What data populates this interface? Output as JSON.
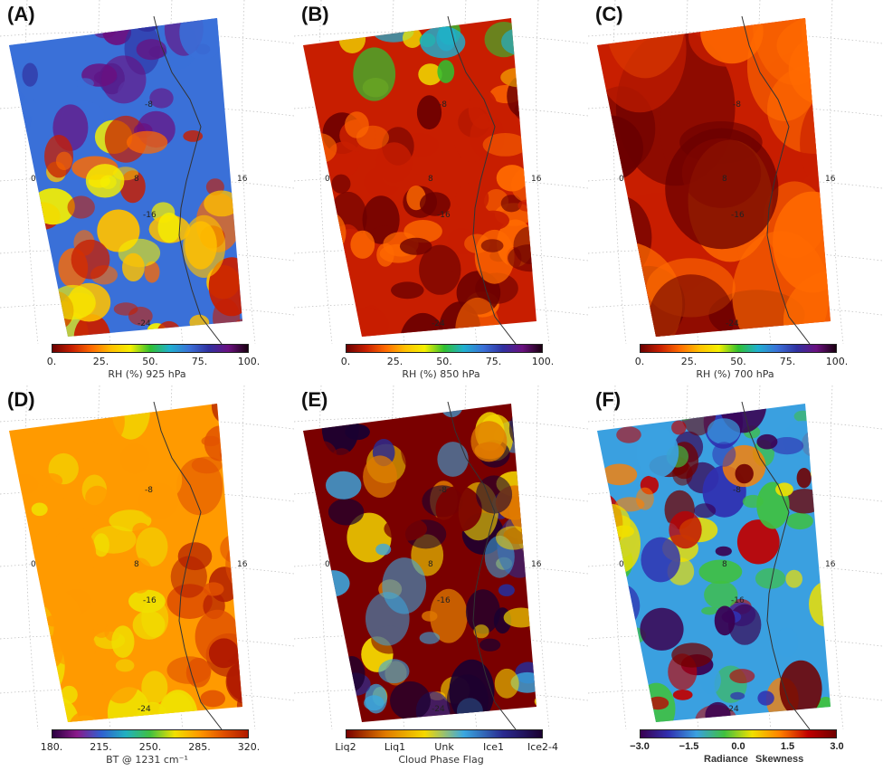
{
  "panels": [
    {
      "letter": "(A)",
      "scheme": "rh_low",
      "colorbar": {
        "ticks": [
          "0.",
          "25.",
          "50.",
          "75.",
          "100."
        ],
        "label": "RH (%) 925 hPa"
      }
    },
    {
      "letter": "(B)",
      "scheme": "rh_mid",
      "colorbar": {
        "ticks": [
          "0.",
          "25.",
          "50.",
          "75.",
          "100."
        ],
        "label": "RH (%) 850 hPa"
      }
    },
    {
      "letter": "(C)",
      "scheme": "rh_dry",
      "colorbar": {
        "ticks": [
          "0.",
          "25.",
          "50.",
          "75.",
          "100."
        ],
        "label": "RH (%) 700 hPa"
      }
    },
    {
      "letter": "(D)",
      "scheme": "bt",
      "colorbar": {
        "ticks": [
          "180.",
          "215.",
          "250.",
          "285.",
          "320."
        ],
        "label": "BT @ 1231 cm⁻¹"
      }
    },
    {
      "letter": "(E)",
      "scheme": "phase",
      "colorbar": {
        "ticks": [
          "Liq2",
          "Liq1",
          "Unk",
          "Ice1",
          "Ice2-4"
        ],
        "label": "Cloud Phase Flag"
      }
    },
    {
      "letter": "(F)",
      "scheme": "skew",
      "colorbar": {
        "ticks": [
          "−3.0",
          "−1.5",
          "0.0",
          "1.5",
          "3.0"
        ],
        "label_left": "Radiance",
        "label_right": "Skewness"
      }
    }
  ],
  "map_labels": {
    "lat_minus8": "-8",
    "lat_minus16": "-16",
    "lat_minus24": "-24",
    "lon_0": "0",
    "lon_8": "8",
    "lon_16": "16"
  },
  "colors": {
    "rainbow": [
      "#6b0000",
      "#c81e00",
      "#ff6a00",
      "#ffc000",
      "#f5f000",
      "#30c030",
      "#1fb0d0",
      "#3a70d8",
      "#3030a0",
      "#6a1080",
      "#1a0010"
    ],
    "bt": [
      "#2a0040",
      "#8a1a8a",
      "#3060d0",
      "#20b0c0",
      "#40c040",
      "#f0e000",
      "#ff9a00",
      "#e05000",
      "#b01a00"
    ],
    "phase": [
      "#7a0000",
      "#e07a00",
      "#f5d800",
      "#3aa8e0",
      "#2a2a90",
      "#1a0030"
    ],
    "skew": [
      "#3a0050",
      "#3030b0",
      "#3aa0e0",
      "#40c040",
      "#f0e000",
      "#ff8000",
      "#c00000",
      "#700000"
    ]
  }
}
